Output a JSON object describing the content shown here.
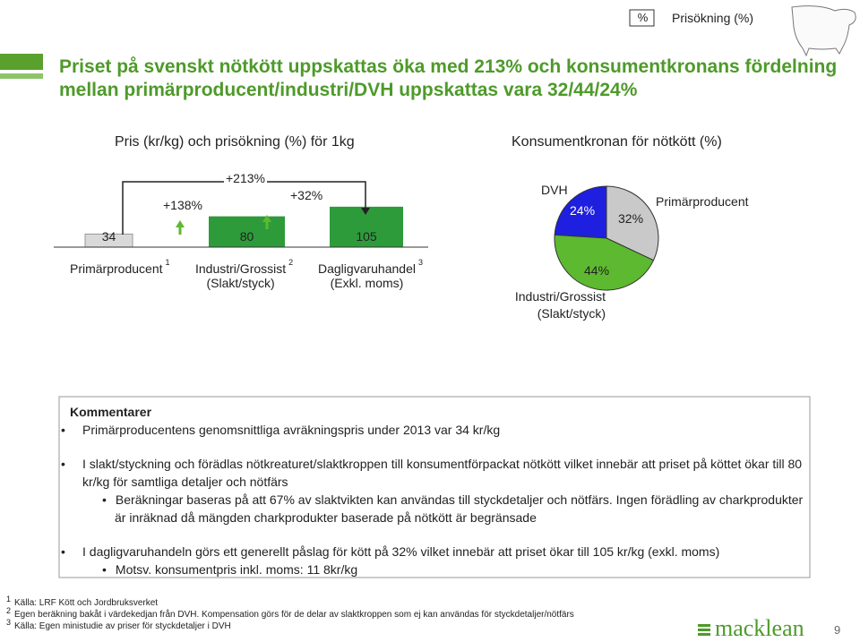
{
  "slide": {
    "title": "Priset på svenskt nötkött uppskattas öka med 213% och konsumentkronans fördelning\nmellan primärproducent/industri/DVH uppskattas vara 32/44/24%",
    "legend": {
      "symbol": "%",
      "label": "Prisökning (%)"
    },
    "comments": {
      "heading": "Kommentarer",
      "items": [
        {
          "text": "Primärproducentens genomsnittliga avräkningspris under 2013 var 34 kr/kg",
          "sub": []
        },
        {
          "text": "I slakt/styckning och förädlas nötkreaturet/slaktkroppen till konsumentförpackat nötkött vilket innebär att priset på köttet ökar till 80 kr/kg för samtliga detaljer och nötfärs",
          "sub": [
            "Beräkningar baseras på att 67% av slaktvikten kan användas till styckdetaljer och nötfärs. Ingen förädling av charkprodukter är inräknad då mängden charkprodukter baserade på nötkött är begränsade"
          ]
        },
        {
          "text": "I dagligvaruhandeln görs ett generellt påslag för kött på 32% vilket innebär att priset ökar till 105 kr/kg (exkl. moms)",
          "sub": [
            "Motsv. konsumentpris inkl. moms: 11 8kr/kg"
          ]
        }
      ]
    },
    "footnotes": [
      {
        "mark": 1,
        "text": "Källa: LRF Kött och Jordbruksverket"
      },
      {
        "mark": 2,
        "text": "Egen beräkning bakåt i värdekedjan från DVH. Kompensation görs för de delar av slaktkroppen som ej kan användas för styckdetaljer/nötfärs"
      },
      {
        "mark": 3,
        "text": "Källa: Egen ministudie av priser för styckdetaljer i DVH"
      }
    ],
    "logo": "macklean",
    "page_number": 9
  },
  "chart_data": [
    {
      "type": "bar",
      "title": "Pris (kr/kg) och prisökning (%) för 1kg",
      "categories": [
        "Primärproducent",
        "Industri/Grossist\n(Slakt/styck)",
        "Dagligvaruhandel\n(Exkl. moms)"
      ],
      "category_notes": [
        1,
        2,
        3
      ],
      "values": [
        34,
        80,
        105
      ],
      "colors": [
        "#d9d9d9",
        "#2e9b3b",
        "#2e9b3b"
      ],
      "annotations": [
        "+138%",
        "+213%",
        "+32%"
      ]
    },
    {
      "type": "pie",
      "title": "Konsumentkronan för nötkött (%)",
      "categories": [
        "DVH",
        "Primärproducent",
        "Industri/Grossist\n(Slakt/styck)"
      ],
      "values": [
        24,
        32,
        44
      ],
      "value_labels": [
        "24%",
        "32%",
        "44%"
      ],
      "colors": [
        "#1f1fe0",
        "#c9c9c9",
        "#5db92f"
      ]
    }
  ]
}
